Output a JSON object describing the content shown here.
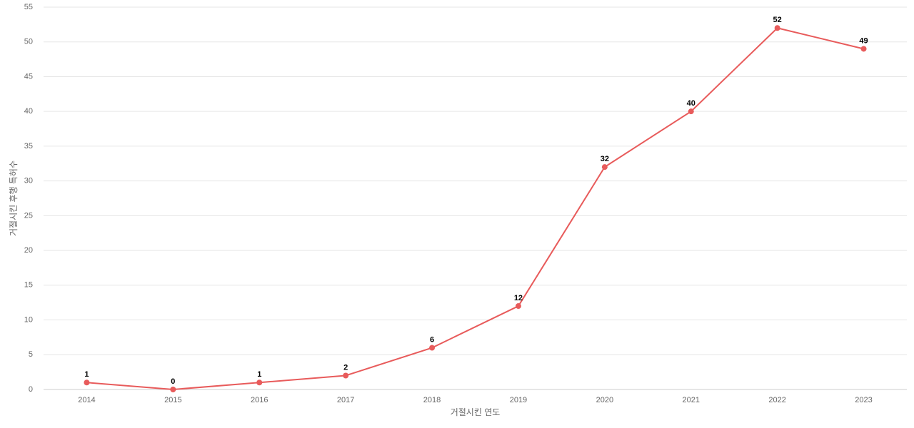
{
  "chart_data": {
    "type": "line",
    "x_label": "거절시킨 연도",
    "y_label": "거절시킨 후행 특허수",
    "categories": [
      "2014",
      "2015",
      "2016",
      "2017",
      "2018",
      "2019",
      "2020",
      "2021",
      "2022",
      "2023"
    ],
    "series": [
      {
        "name": "거절시킨 후행 특허수",
        "color": "#e85b5b",
        "values": [
          1,
          0,
          1,
          2,
          6,
          12,
          32,
          40,
          52,
          49
        ]
      }
    ],
    "ylim": [
      0,
      55
    ],
    "yticks": [
      0,
      5,
      10,
      15,
      20,
      25,
      30,
      35,
      40,
      45,
      50,
      55
    ],
    "grid": true
  }
}
